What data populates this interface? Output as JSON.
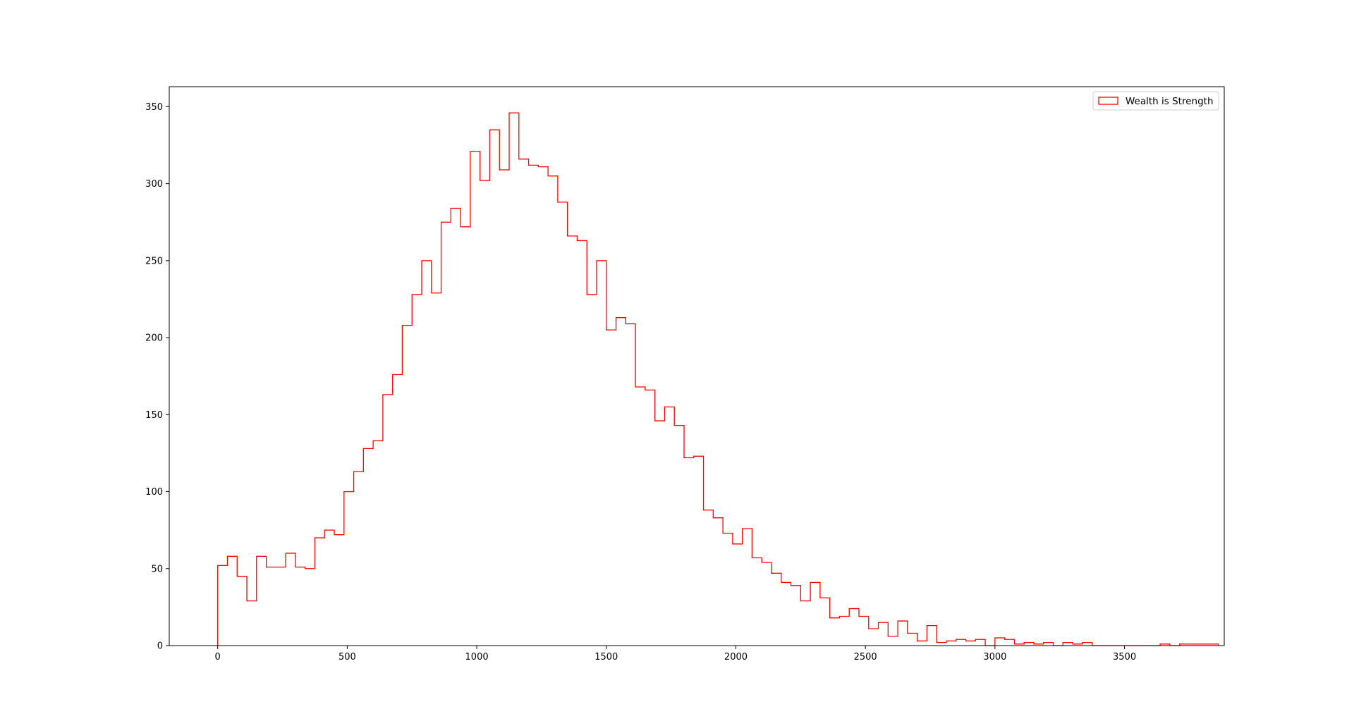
{
  "chart_data": {
    "type": "histogram",
    "style": "step",
    "series": [
      {
        "name": "Wealth is Strength",
        "color": "#ff0000",
        "bin_width": 37.5,
        "bin_start": 0,
        "values": [
          52,
          58,
          45,
          29,
          58,
          51,
          51,
          60,
          51,
          50,
          70,
          75,
          72,
          100,
          113,
          128,
          133,
          163,
          176,
          208,
          228,
          250,
          229,
          275,
          284,
          272,
          321,
          302,
          335,
          309,
          346,
          316,
          312,
          311,
          305,
          288,
          266,
          263,
          228,
          250,
          205,
          213,
          209,
          168,
          166,
          146,
          155,
          143,
          122,
          123,
          88,
          83,
          73,
          66,
          76,
          57,
          54,
          47,
          41,
          39,
          29,
          41,
          31,
          18,
          19,
          24,
          19,
          11,
          15,
          6,
          16,
          8,
          3,
          13,
          2,
          3,
          4,
          3,
          4,
          0,
          5,
          4,
          1,
          2,
          1,
          2,
          0,
          2,
          1,
          2,
          0,
          0,
          0,
          0,
          0,
          0,
          0,
          1,
          0,
          1,
          1,
          1,
          1
        ]
      }
    ],
    "xlim": [
      -187,
      3885
    ],
    "ylim": [
      0,
      363
    ],
    "xticks": [
      0,
      500,
      1000,
      1500,
      2000,
      2500,
      3000,
      3500
    ],
    "yticks": [
      0,
      50,
      100,
      150,
      200,
      250,
      300,
      350
    ],
    "legend": {
      "position": "top-right"
    },
    "grid": false
  }
}
